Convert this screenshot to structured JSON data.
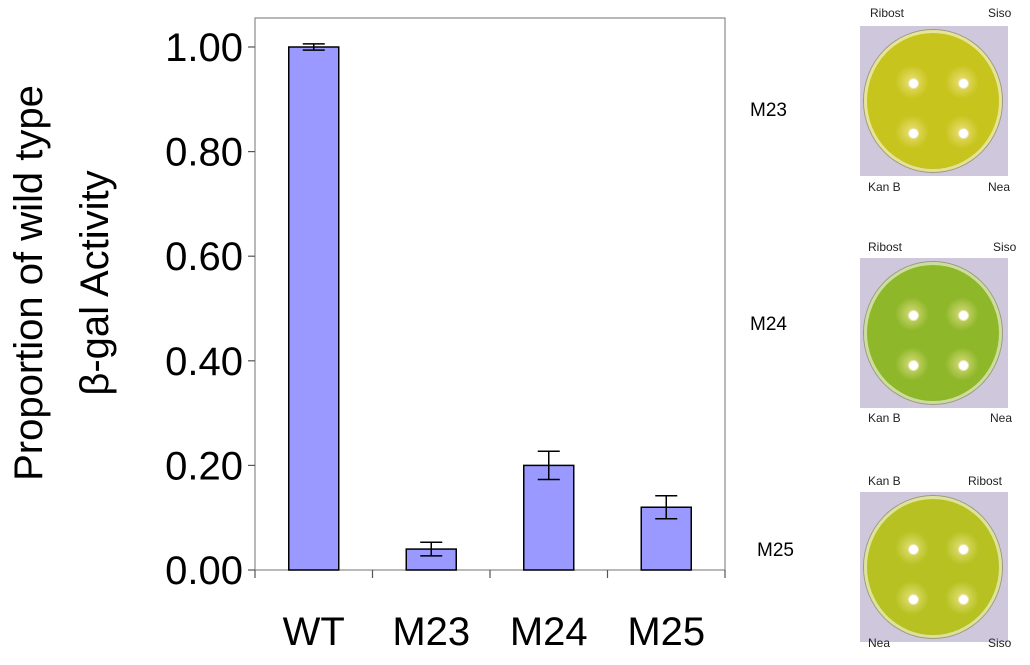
{
  "chart_data": {
    "type": "bar",
    "categories": [
      "WT",
      "M23",
      "M24",
      "M25"
    ],
    "values": [
      1.0,
      0.04,
      0.2,
      0.12
    ],
    "errors": [
      0.006,
      0.013,
      0.027,
      0.022
    ],
    "ylabel_line1": "Proportion of wild type",
    "ylabel_line2": "β-gal Activity",
    "yticks": [
      "0.00",
      "0.20",
      "0.40",
      "0.60",
      "0.80",
      "1.00"
    ],
    "ylim": [
      0,
      1.05
    ],
    "grid": false,
    "bar_color": "#9999ff"
  },
  "plates": [
    {
      "label": "M23",
      "top_left": "Ribost",
      "top_right": "Siso",
      "bottom_left": "Kan B",
      "bottom_right": "Nea",
      "color": "#c8c41e"
    },
    {
      "label": "M24",
      "top_left": "Ribost",
      "top_right": "Siso",
      "bottom_left": "Kan B",
      "bottom_right": "Nea",
      "color": "#8fb72a"
    },
    {
      "label": "M25",
      "top_left": "Kan B",
      "top_right": "Ribost",
      "bottom_left": "Nea",
      "bottom_right": "Siso",
      "color": "#b7c222"
    }
  ]
}
